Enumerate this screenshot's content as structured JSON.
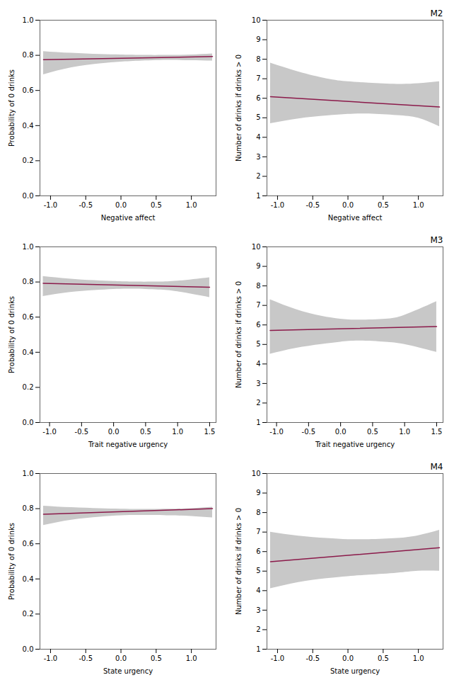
{
  "chart_data": [
    {
      "type": "line",
      "xlabel": "Negative affect",
      "ylabel": "Probability of 0 drinks",
      "xlim": [
        -1.15,
        1.35
      ],
      "ylim": [
        0.0,
        1.0
      ],
      "xticks": [
        {
          "value": -1.0,
          "label": "-1.0"
        },
        -0.5,
        {
          "value": 0.0,
          "label": "0.0"
        },
        0.5,
        {
          "value": 1.0,
          "label": "1.0"
        }
      ],
      "yticks": [
        {
          "value": 0.0,
          "label": "0.0"
        },
        0.2,
        0.4,
        0.6,
        0.8,
        {
          "value": 1.0,
          "label": "1.0"
        }
      ],
      "x": [
        -1.1,
        1.3
      ],
      "values": [
        0.775,
        0.793
      ],
      "color": "#8B1A4A",
      "ci": {
        "color": "#C8C8C8",
        "upper_x": [
          -1.1,
          -0.7,
          -0.3,
          0.0,
          0.3,
          0.7,
          1.0,
          1.3
        ],
        "upper_y": [
          0.822,
          0.812,
          0.805,
          0.802,
          0.8,
          0.8,
          0.802,
          0.808
        ],
        "lower_x": [
          -1.1,
          -0.7,
          -0.3,
          0.0,
          0.3,
          0.7,
          1.0,
          1.3
        ],
        "lower_y": [
          0.69,
          0.73,
          0.752,
          0.762,
          0.768,
          0.772,
          0.77,
          0.768
        ]
      }
    },
    {
      "type": "line",
      "title": "M2",
      "xlabel": "Negative affect",
      "ylabel": "Number of drinks if drinks > 0",
      "xlim": [
        -1.15,
        1.35
      ],
      "ylim": [
        1.0,
        10.0
      ],
      "xticks": [
        {
          "value": -1.0,
          "label": "-1.0"
        },
        -0.5,
        {
          "value": 0.0,
          "label": "0.0"
        },
        0.5,
        {
          "value": 1.0,
          "label": "1.0"
        }
      ],
      "yticks": [
        1,
        2,
        3,
        4,
        5,
        6,
        7,
        8,
        9,
        10
      ],
      "x": [
        -1.1,
        1.3
      ],
      "values": [
        6.08,
        5.55
      ],
      "color": "#8B1A4A",
      "ci": {
        "color": "#C8C8C8",
        "upper_x": [
          -1.1,
          -0.7,
          -0.3,
          0.0,
          0.3,
          0.7,
          1.0,
          1.3
        ],
        "upper_y": [
          7.8,
          7.35,
          7.0,
          6.85,
          6.78,
          6.72,
          6.75,
          6.85
        ],
        "lower_x": [
          -1.1,
          -0.7,
          -0.3,
          0.0,
          0.3,
          0.7,
          1.0,
          1.3
        ],
        "lower_y": [
          4.7,
          4.95,
          5.1,
          5.18,
          5.2,
          5.12,
          4.98,
          4.55
        ]
      }
    },
    {
      "type": "line",
      "xlabel": "Trait negative urgency",
      "ylabel": "Probability of 0 drinks",
      "xlim": [
        -1.15,
        1.6
      ],
      "ylim": [
        0.0,
        1.0
      ],
      "xticks": [
        {
          "value": -1.0,
          "label": "-1.0"
        },
        -0.5,
        {
          "value": 0.0,
          "label": "0.0"
        },
        0.5,
        {
          "value": 1.0,
          "label": "1.0"
        },
        1.5
      ],
      "yticks": [
        {
          "value": 0.0,
          "label": "0.0"
        },
        0.2,
        0.4,
        0.6,
        0.8,
        {
          "value": 1.0,
          "label": "1.0"
        }
      ],
      "x": [
        -1.1,
        1.5
      ],
      "values": [
        0.792,
        0.77
      ],
      "color": "#8B1A4A",
      "ci": {
        "color": "#C8C8C8",
        "upper_x": [
          -1.1,
          -0.7,
          -0.3,
          0.0,
          0.3,
          0.7,
          1.0,
          1.5
        ],
        "upper_y": [
          0.832,
          0.818,
          0.808,
          0.803,
          0.8,
          0.8,
          0.805,
          0.825
        ],
        "lower_x": [
          -1.1,
          -0.7,
          -0.3,
          0.0,
          0.3,
          0.7,
          1.0,
          1.5
        ],
        "lower_y": [
          0.718,
          0.74,
          0.752,
          0.758,
          0.76,
          0.755,
          0.745,
          0.712
        ]
      }
    },
    {
      "type": "line",
      "title": "M3",
      "xlabel": "Trait negative urgency",
      "ylabel": "Number of drinks if drinks > 0",
      "xlim": [
        -1.15,
        1.6
      ],
      "ylim": [
        1.0,
        10.0
      ],
      "xticks": [
        {
          "value": -1.0,
          "label": "-1.0"
        },
        -0.5,
        {
          "value": 0.0,
          "label": "0.0"
        },
        0.5,
        {
          "value": 1.0,
          "label": "1.0"
        },
        1.5
      ],
      "yticks": [
        1,
        2,
        3,
        4,
        5,
        6,
        7,
        8,
        9,
        10
      ],
      "x": [
        -1.1,
        1.5
      ],
      "values": [
        5.72,
        5.92
      ],
      "color": "#8B1A4A",
      "ci": {
        "color": "#C8C8C8",
        "upper_x": [
          -1.1,
          -0.7,
          -0.3,
          0.0,
          0.3,
          0.7,
          1.0,
          1.5
        ],
        "upper_y": [
          7.3,
          6.8,
          6.45,
          6.3,
          6.25,
          6.3,
          6.5,
          7.2
        ],
        "lower_x": [
          -1.1,
          -0.7,
          -0.3,
          0.0,
          0.3,
          0.7,
          1.0,
          1.5
        ],
        "lower_y": [
          4.5,
          4.8,
          5.0,
          5.12,
          5.18,
          5.12,
          5.0,
          4.6
        ]
      }
    },
    {
      "type": "line",
      "xlabel": "State urgency",
      "ylabel": "Probability of 0 drinks",
      "xlim": [
        -1.15,
        1.35
      ],
      "ylim": [
        0.0,
        1.0
      ],
      "xticks": [
        {
          "value": -1.0,
          "label": "-1.0"
        },
        -0.5,
        {
          "value": 0.0,
          "label": "0.0"
        },
        0.5,
        {
          "value": 1.0,
          "label": "1.0"
        }
      ],
      "yticks": [
        {
          "value": 0.0,
          "label": "0.0"
        },
        0.2,
        0.4,
        0.6,
        0.8,
        {
          "value": 1.0,
          "label": "1.0"
        }
      ],
      "x": [
        -1.1,
        1.3
      ],
      "values": [
        0.768,
        0.8
      ],
      "color": "#8B1A4A",
      "ci": {
        "color": "#C8C8C8",
        "upper_x": [
          -1.1,
          -0.7,
          -0.3,
          0.0,
          0.3,
          0.7,
          1.0,
          1.3
        ],
        "upper_y": [
          0.815,
          0.806,
          0.8,
          0.797,
          0.796,
          0.797,
          0.8,
          0.808
        ],
        "lower_x": [
          -1.1,
          -0.7,
          -0.3,
          0.0,
          0.3,
          0.7,
          1.0,
          1.3
        ],
        "lower_y": [
          0.705,
          0.735,
          0.752,
          0.76,
          0.762,
          0.76,
          0.756,
          0.748
        ]
      }
    },
    {
      "type": "line",
      "title": "M4",
      "xlabel": "State urgency",
      "ylabel": "Number of drinks if drinks > 0",
      "xlim": [
        -1.15,
        1.35
      ],
      "ylim": [
        1.0,
        10.0
      ],
      "xticks": [
        {
          "value": -1.0,
          "label": "-1.0"
        },
        -0.5,
        {
          "value": 0.0,
          "label": "0.0"
        },
        0.5,
        {
          "value": 1.0,
          "label": "1.0"
        }
      ],
      "yticks": [
        1,
        2,
        3,
        4,
        5,
        6,
        7,
        8,
        9,
        10
      ],
      "x": [
        -1.1,
        1.3
      ],
      "values": [
        5.48,
        6.2
      ],
      "color": "#8B1A4A",
      "ci": {
        "color": "#C8C8C8",
        "upper_x": [
          -1.1,
          -0.7,
          -0.3,
          0.0,
          0.3,
          0.7,
          1.0,
          1.3
        ],
        "upper_y": [
          7.0,
          6.8,
          6.68,
          6.62,
          6.62,
          6.68,
          6.82,
          7.1
        ],
        "lower_x": [
          -1.1,
          -0.7,
          -0.3,
          0.0,
          0.3,
          0.7,
          1.0,
          1.3
        ],
        "lower_y": [
          4.1,
          4.42,
          4.62,
          4.72,
          4.8,
          4.9,
          5.0,
          5.0
        ]
      }
    }
  ]
}
